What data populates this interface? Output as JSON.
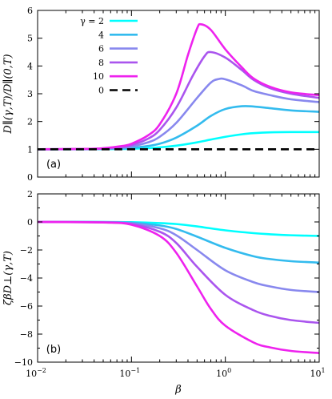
{
  "chart_data": [
    {
      "type": "line",
      "panel_label": "(a)",
      "ylabel": "D∥(γ,T)/D∥(0,T)",
      "xlabel": "",
      "xscale": "log",
      "xlim": [
        0.01,
        10
      ],
      "ylim": [
        0,
        6
      ],
      "yticks": [
        0,
        1,
        2,
        3,
        4,
        5,
        6
      ],
      "ytick_labels": [
        "0",
        "1",
        "2",
        "3",
        "4",
        "5",
        "6"
      ],
      "legend_title_symbol": "γ =",
      "legend_position": "top-left",
      "series": [
        {
          "name": "2",
          "color": "#00ffff",
          "dash": false,
          "x": [
            0.01,
            0.03,
            0.05,
            0.08,
            0.1,
            0.15,
            0.2,
            0.3,
            0.5,
            0.7,
            1,
            1.5,
            2,
            3,
            5,
            10
          ],
          "y": [
            1,
            1,
            1.005,
            1.01,
            1.02,
            1.04,
            1.07,
            1.13,
            1.25,
            1.35,
            1.45,
            1.54,
            1.58,
            1.61,
            1.62,
            1.62
          ]
        },
        {
          "name": "4",
          "color": "#33bbee",
          "dash": false,
          "x": [
            0.01,
            0.03,
            0.05,
            0.08,
            0.1,
            0.15,
            0.2,
            0.3,
            0.5,
            0.7,
            1,
            1.5,
            2,
            3,
            5,
            10
          ],
          "y": [
            1,
            1.005,
            1.01,
            1.03,
            1.05,
            1.12,
            1.2,
            1.42,
            1.85,
            2.2,
            2.45,
            2.55,
            2.54,
            2.48,
            2.4,
            2.35
          ]
        },
        {
          "name": "6",
          "color": "#8888ee",
          "dash": false,
          "x": [
            0.01,
            0.03,
            0.05,
            0.08,
            0.1,
            0.15,
            0.2,
            0.3,
            0.5,
            0.7,
            0.85,
            1,
            1.5,
            2,
            3,
            5,
            10
          ],
          "y": [
            1,
            1.01,
            1.02,
            1.06,
            1.1,
            1.25,
            1.45,
            1.95,
            2.85,
            3.4,
            3.53,
            3.52,
            3.3,
            3.1,
            2.95,
            2.8,
            2.7
          ]
        },
        {
          "name": "8",
          "color": "#aa55ee",
          "dash": false,
          "x": [
            0.01,
            0.03,
            0.05,
            0.08,
            0.1,
            0.15,
            0.2,
            0.3,
            0.45,
            0.6,
            0.7,
            1,
            1.5,
            2,
            3,
            5,
            10
          ],
          "y": [
            1,
            1.01,
            1.03,
            1.09,
            1.15,
            1.38,
            1.7,
            2.5,
            3.65,
            4.35,
            4.5,
            4.3,
            3.85,
            3.5,
            3.2,
            3.0,
            2.85
          ]
        },
        {
          "name": "10",
          "color": "#ee22ee",
          "dash": false,
          "x": [
            0.01,
            0.03,
            0.05,
            0.08,
            0.1,
            0.15,
            0.2,
            0.3,
            0.4,
            0.5,
            0.55,
            0.7,
            1,
            1.5,
            2,
            3,
            5,
            10
          ],
          "y": [
            1,
            1.01,
            1.04,
            1.12,
            1.2,
            1.5,
            1.9,
            3.0,
            4.4,
            5.35,
            5.5,
            5.3,
            4.6,
            3.95,
            3.55,
            3.25,
            3.05,
            2.95
          ]
        },
        {
          "name": "0",
          "color": "#000000",
          "dash": true,
          "x": [
            0.01,
            10
          ],
          "y": [
            1,
            1
          ]
        }
      ]
    },
    {
      "type": "line",
      "panel_label": "(b)",
      "ylabel": "ζβD⊥(γ,T)",
      "xlabel": "β",
      "xscale": "log",
      "xlim": [
        0.01,
        10
      ],
      "ylim": [
        -10,
        2
      ],
      "yticks": [
        -10,
        -8,
        -6,
        -4,
        -2,
        0,
        2
      ],
      "ytick_labels": [
        "−10",
        "−8",
        "−6",
        "−4",
        "−2",
        "0",
        "2"
      ],
      "xtick_labels": [
        "10",
        "10",
        "10",
        "10"
      ],
      "xtick_exponents": [
        "−2",
        "−1",
        "0",
        "1"
      ],
      "series": [
        {
          "name": "2",
          "color": "#00ffff",
          "x": [
            0.01,
            0.05,
            0.1,
            0.2,
            0.3,
            0.5,
            1,
            2,
            3,
            5,
            10
          ],
          "y": [
            0,
            0,
            -0.02,
            -0.08,
            -0.15,
            -0.32,
            -0.6,
            -0.8,
            -0.88,
            -0.95,
            -1.0
          ]
        },
        {
          "name": "4",
          "color": "#33bbee",
          "x": [
            0.01,
            0.05,
            0.1,
            0.2,
            0.3,
            0.5,
            1,
            2,
            3,
            5,
            10
          ],
          "y": [
            0,
            -0.01,
            -0.05,
            -0.25,
            -0.5,
            -1.05,
            -1.85,
            -2.45,
            -2.65,
            -2.8,
            -2.9
          ]
        },
        {
          "name": "6",
          "color": "#8888ee",
          "x": [
            0.01,
            0.05,
            0.1,
            0.2,
            0.3,
            0.5,
            1,
            2,
            3,
            5,
            10
          ],
          "y": [
            0,
            -0.02,
            -0.1,
            -0.45,
            -0.95,
            -2.0,
            -3.45,
            -4.3,
            -4.6,
            -4.85,
            -5.0
          ]
        },
        {
          "name": "8",
          "color": "#aa55ee",
          "x": [
            0.01,
            0.05,
            0.1,
            0.2,
            0.3,
            0.5,
            1,
            2,
            3,
            5,
            10
          ],
          "y": [
            0,
            -0.03,
            -0.15,
            -0.7,
            -1.5,
            -3.2,
            -5.2,
            -6.3,
            -6.7,
            -7.0,
            -7.2
          ]
        },
        {
          "name": "10",
          "color": "#ee22ee",
          "x": [
            0.01,
            0.05,
            0.1,
            0.2,
            0.3,
            0.5,
            0.7,
            1,
            2,
            3,
            5,
            10
          ],
          "y": [
            0,
            -0.04,
            -0.2,
            -1.0,
            -2.2,
            -4.6,
            -6.2,
            -7.4,
            -8.6,
            -8.95,
            -9.2,
            -9.35
          ]
        }
      ]
    }
  ]
}
